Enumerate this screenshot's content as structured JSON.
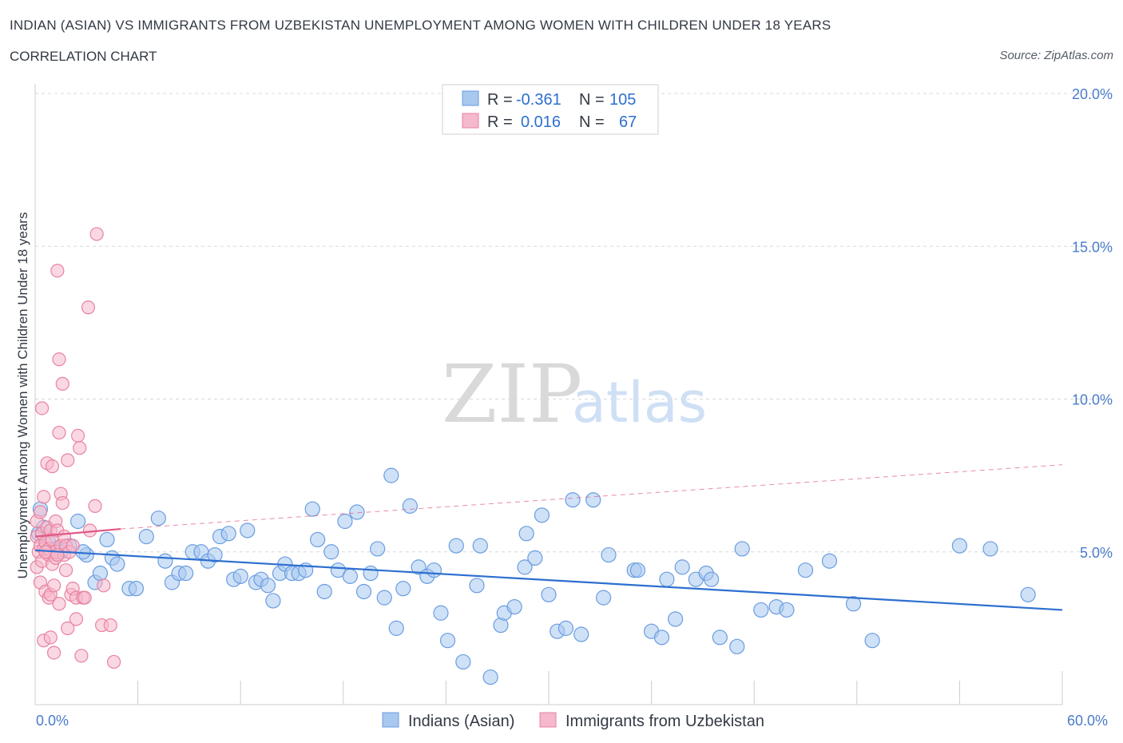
{
  "header": {
    "title": "INDIAN (ASIAN) VS IMMIGRANTS FROM UZBEKISTAN UNEMPLOYMENT AMONG WOMEN WITH CHILDREN UNDER 18 YEARS",
    "subtitle": "CORRELATION CHART",
    "source": "Source: ZipAtlas.com"
  },
  "watermark": {
    "zip": "ZIP",
    "atlas": "atlas"
  },
  "colors": {
    "blue_fill": "#a8c8f0",
    "blue_stroke": "#6a9de0",
    "blue_line": "#2d6fcf",
    "pink_fill": "#f5b8cc",
    "pink_stroke": "#e8829f",
    "pink_line": "#e05a86",
    "tick_text": "#4a7cc9",
    "grid": "#d8d8d8"
  },
  "stats_legend": {
    "rows": [
      {
        "r_label": "R =",
        "r_value": "-0.361",
        "n_label": "N =",
        "n_value": "105"
      },
      {
        "r_label": "R =",
        "r_value": "0.016",
        "n_label": "N =",
        "n_value": "67"
      }
    ]
  },
  "bottom_legend": [
    "Indians (Asian)",
    "Immigrants from Uzbekistan"
  ],
  "chart_data": {
    "type": "scatter",
    "xlabel": "",
    "ylabel": "Unemployment Among Women with Children Under 18 years",
    "xlim": [
      0,
      60
    ],
    "ylim": [
      0,
      20
    ],
    "x_tick_labels": [
      "0.0%",
      "60.0%"
    ],
    "y_tick_labels": [
      "5.0%",
      "10.0%",
      "15.0%",
      "20.0%"
    ],
    "y_ticks": [
      5,
      10,
      15,
      20
    ],
    "grid": true,
    "legend_position": "bottom-center",
    "series": [
      {
        "name": "Indians (Asian)",
        "color": "#a8c8f0",
        "trend": {
          "x": [
            0,
            60
          ],
          "y": [
            5.05,
            3.1
          ],
          "style": "solid"
        },
        "points": [
          [
            0.3,
            6.4
          ],
          [
            0.5,
            5.8
          ],
          [
            0.8,
            5.3
          ],
          [
            1.2,
            5.1
          ],
          [
            1.5,
            5.0
          ],
          [
            2.0,
            5.2
          ],
          [
            2.5,
            6.0
          ],
          [
            3.0,
            4.9
          ],
          [
            3.5,
            4.0
          ],
          [
            3.8,
            4.3
          ],
          [
            4.2,
            5.4
          ],
          [
            4.5,
            4.8
          ],
          [
            4.8,
            4.6
          ],
          [
            5.5,
            3.8
          ],
          [
            5.9,
            3.8
          ],
          [
            6.5,
            5.5
          ],
          [
            7.2,
            6.1
          ],
          [
            7.6,
            4.7
          ],
          [
            8.0,
            4.0
          ],
          [
            8.4,
            4.3
          ],
          [
            8.8,
            4.3
          ],
          [
            9.2,
            5.0
          ],
          [
            9.7,
            5.0
          ],
          [
            10.1,
            4.7
          ],
          [
            10.5,
            4.9
          ],
          [
            10.8,
            5.5
          ],
          [
            11.3,
            5.6
          ],
          [
            11.6,
            4.1
          ],
          [
            12.0,
            4.2
          ],
          [
            12.4,
            5.7
          ],
          [
            12.9,
            4.0
          ],
          [
            13.2,
            4.1
          ],
          [
            13.6,
            3.9
          ],
          [
            13.9,
            3.4
          ],
          [
            14.3,
            4.3
          ],
          [
            14.6,
            4.6
          ],
          [
            15.0,
            4.3
          ],
          [
            15.4,
            4.3
          ],
          [
            15.8,
            4.4
          ],
          [
            16.2,
            6.4
          ],
          [
            16.5,
            5.4
          ],
          [
            16.9,
            3.7
          ],
          [
            17.3,
            5.0
          ],
          [
            17.7,
            4.4
          ],
          [
            18.1,
            6.0
          ],
          [
            18.4,
            4.2
          ],
          [
            18.8,
            6.3
          ],
          [
            19.2,
            3.7
          ],
          [
            19.6,
            4.3
          ],
          [
            20.0,
            5.1
          ],
          [
            20.4,
            3.5
          ],
          [
            20.8,
            7.5
          ],
          [
            21.1,
            2.5
          ],
          [
            21.5,
            3.8
          ],
          [
            21.9,
            6.5
          ],
          [
            22.4,
            4.5
          ],
          [
            22.9,
            4.2
          ],
          [
            23.3,
            4.4
          ],
          [
            23.7,
            3.0
          ],
          [
            24.1,
            2.1
          ],
          [
            24.6,
            5.2
          ],
          [
            25.0,
            1.4
          ],
          [
            25.8,
            3.9
          ],
          [
            26.0,
            5.2
          ],
          [
            26.6,
            0.9
          ],
          [
            27.2,
            2.6
          ],
          [
            27.4,
            3.0
          ],
          [
            28.0,
            3.2
          ],
          [
            28.6,
            4.5
          ],
          [
            28.7,
            5.6
          ],
          [
            29.2,
            4.8
          ],
          [
            29.6,
            6.2
          ],
          [
            30.0,
            3.6
          ],
          [
            30.5,
            2.4
          ],
          [
            31.0,
            2.5
          ],
          [
            31.4,
            6.7
          ],
          [
            31.9,
            2.3
          ],
          [
            32.6,
            6.7
          ],
          [
            33.2,
            3.5
          ],
          [
            33.5,
            4.9
          ],
          [
            35.0,
            4.4
          ],
          [
            35.2,
            4.4
          ],
          [
            36.0,
            2.4
          ],
          [
            36.6,
            2.2
          ],
          [
            36.9,
            4.1
          ],
          [
            37.4,
            2.8
          ],
          [
            37.8,
            4.5
          ],
          [
            38.6,
            4.1
          ],
          [
            39.2,
            4.3
          ],
          [
            39.5,
            4.1
          ],
          [
            40.0,
            2.2
          ],
          [
            41.0,
            1.9
          ],
          [
            41.3,
            5.1
          ],
          [
            42.4,
            3.1
          ],
          [
            43.3,
            3.2
          ],
          [
            43.9,
            3.1
          ],
          [
            45.0,
            4.4
          ],
          [
            46.4,
            4.7
          ],
          [
            47.8,
            3.3
          ],
          [
            48.9,
            2.1
          ],
          [
            54.0,
            5.2
          ],
          [
            55.8,
            5.1
          ],
          [
            58.0,
            3.6
          ],
          [
            0.2,
            5.6
          ],
          [
            2.8,
            5.0
          ]
        ]
      },
      {
        "name": "Immigrants from Uzbekistan",
        "color": "#f5b8cc",
        "trend": {
          "x": [
            0,
            5
          ],
          "y": [
            5.5,
            5.75
          ],
          "style": "solid",
          "extended": {
            "x": [
              5,
              60
            ],
            "y": [
              5.75,
              7.85
            ],
            "style": "dashed"
          }
        },
        "points": [
          [
            0.1,
            4.5
          ],
          [
            0.1,
            5.5
          ],
          [
            0.1,
            6.0
          ],
          [
            0.2,
            5.0
          ],
          [
            0.3,
            4.0
          ],
          [
            0.3,
            5.2
          ],
          [
            0.3,
            6.3
          ],
          [
            0.4,
            4.7
          ],
          [
            0.4,
            5.6
          ],
          [
            0.4,
            9.7
          ],
          [
            0.5,
            5.1
          ],
          [
            0.5,
            6.8
          ],
          [
            0.5,
            2.1
          ],
          [
            0.6,
            3.7
          ],
          [
            0.6,
            5.3
          ],
          [
            0.7,
            5.8
          ],
          [
            0.7,
            7.9
          ],
          [
            0.8,
            3.5
          ],
          [
            0.8,
            4.9
          ],
          [
            0.8,
            5.1
          ],
          [
            0.9,
            2.2
          ],
          [
            0.9,
            3.6
          ],
          [
            0.9,
            5.7
          ],
          [
            1.0,
            4.6
          ],
          [
            1.0,
            5.4
          ],
          [
            1.0,
            7.8
          ],
          [
            1.1,
            1.7
          ],
          [
            1.1,
            3.9
          ],
          [
            1.2,
            4.8
          ],
          [
            1.2,
            5.0
          ],
          [
            1.2,
            6.0
          ],
          [
            1.3,
            5.7
          ],
          [
            1.3,
            14.2
          ],
          [
            1.4,
            11.3
          ],
          [
            1.4,
            8.9
          ],
          [
            1.4,
            3.3
          ],
          [
            1.5,
            6.9
          ],
          [
            1.5,
            5.2
          ],
          [
            1.6,
            10.5
          ],
          [
            1.6,
            6.6
          ],
          [
            1.7,
            5.5
          ],
          [
            1.7,
            4.9
          ],
          [
            1.8,
            5.2
          ],
          [
            1.8,
            4.4
          ],
          [
            1.9,
            8.0
          ],
          [
            1.9,
            2.5
          ],
          [
            2.0,
            5.0
          ],
          [
            2.1,
            3.6
          ],
          [
            2.2,
            5.2
          ],
          [
            2.2,
            3.8
          ],
          [
            2.4,
            2.8
          ],
          [
            2.4,
            3.5
          ],
          [
            2.5,
            8.8
          ],
          [
            2.6,
            8.4
          ],
          [
            2.7,
            1.6
          ],
          [
            2.8,
            3.5
          ],
          [
            2.9,
            3.5
          ],
          [
            3.1,
            13.0
          ],
          [
            3.2,
            5.7
          ],
          [
            3.5,
            6.5
          ],
          [
            3.6,
            15.4
          ],
          [
            3.9,
            2.6
          ],
          [
            4.0,
            3.9
          ],
          [
            4.4,
            2.6
          ],
          [
            4.6,
            1.4
          ],
          [
            0.6,
            5.0
          ],
          [
            1.3,
            4.9
          ]
        ]
      }
    ]
  }
}
